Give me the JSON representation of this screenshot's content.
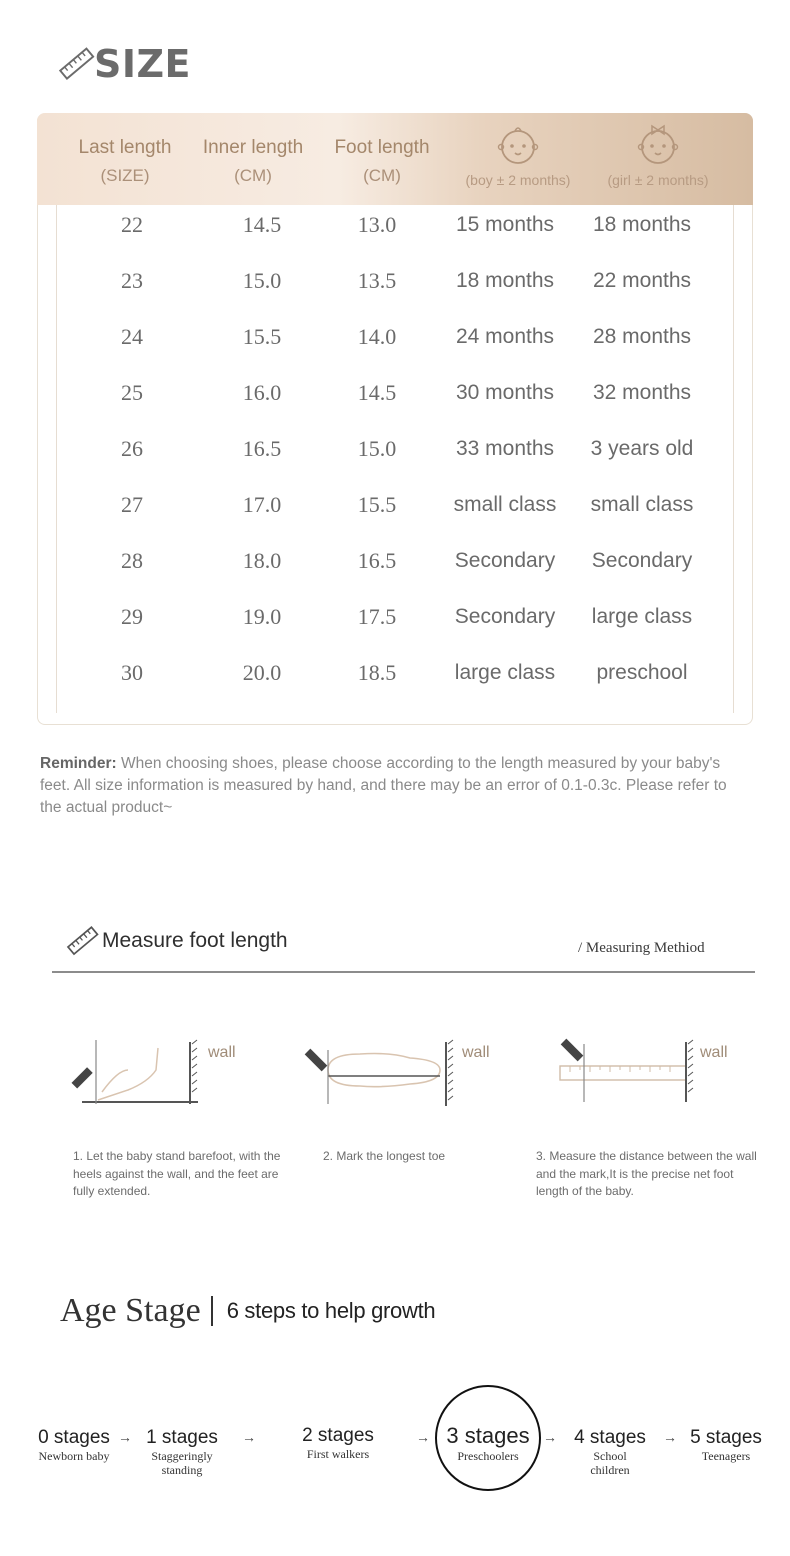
{
  "size_section": {
    "title": "SIZE",
    "icon": "ruler-icon",
    "headers": [
      {
        "title": "Last length",
        "sub": "(SIZE)"
      },
      {
        "title": "Inner length",
        "sub": "(CM)"
      },
      {
        "title": "Foot length",
        "sub": "(CM)"
      },
      {
        "icon": "baby-boy-icon",
        "sub": "(boy ± 2 months)"
      },
      {
        "icon": "baby-girl-icon",
        "sub": "(girl ± 2 months)"
      }
    ],
    "rows": [
      [
        "22",
        "14.5",
        "13.0",
        "15 months",
        "18 months"
      ],
      [
        "23",
        "15.0",
        "13.5",
        "18 months",
        "22 months"
      ],
      [
        "24",
        "15.5",
        "14.0",
        "24 months",
        "28 months"
      ],
      [
        "25",
        "16.0",
        "14.5",
        "30 months",
        "32 months"
      ],
      [
        "26",
        "16.5",
        "15.0",
        "33 months",
        "3 years old"
      ],
      [
        "27",
        "17.0",
        "15.5",
        "small class",
        "small class"
      ],
      [
        "28",
        "18.0",
        "16.5",
        "Secondary",
        "Secondary"
      ],
      [
        "29",
        "19.0",
        "17.5",
        "Secondary",
        "large class"
      ],
      [
        "30",
        "20.0",
        "18.5",
        "large class",
        "preschool"
      ]
    ],
    "reminder_label": "Reminder:",
    "reminder_text": " When choosing shoes, please choose according to the length measured by your baby's feet. All size information is measured by hand, and there may be an error of 0.1-0.3c. Please refer to the actual product~"
  },
  "measure_section": {
    "title": "Measure foot length",
    "subtitle": "/ Measuring Methiod",
    "wall_label": "wall",
    "steps": [
      "1. Let the baby stand barefoot, with the heels against the wall, and the feet are fully extended.",
      "2. Mark the longest toe",
      "3. Measure the distance between the wall and the mark,It is the precise net foot length of  the baby."
    ]
  },
  "age_section": {
    "title": "Age Stage",
    "subtitle": "6 steps to help growth",
    "arrow": "→",
    "stages": [
      {
        "label": "0 stages",
        "desc": "Newborn baby"
      },
      {
        "label": "1 stages",
        "desc": "Staggeringly standing"
      },
      {
        "label": "2 stages",
        "desc": "First walkers"
      },
      {
        "label": "3 stages",
        "desc": "Preschoolers"
      },
      {
        "label": "4 stages",
        "desc": "School children"
      },
      {
        "label": "5 stages",
        "desc": "Teenagers"
      }
    ]
  },
  "colors": {
    "header_gradient_start": "#f3e2d3",
    "header_gradient_end": "#d6bca2",
    "header_text": "#a4876b"
  }
}
